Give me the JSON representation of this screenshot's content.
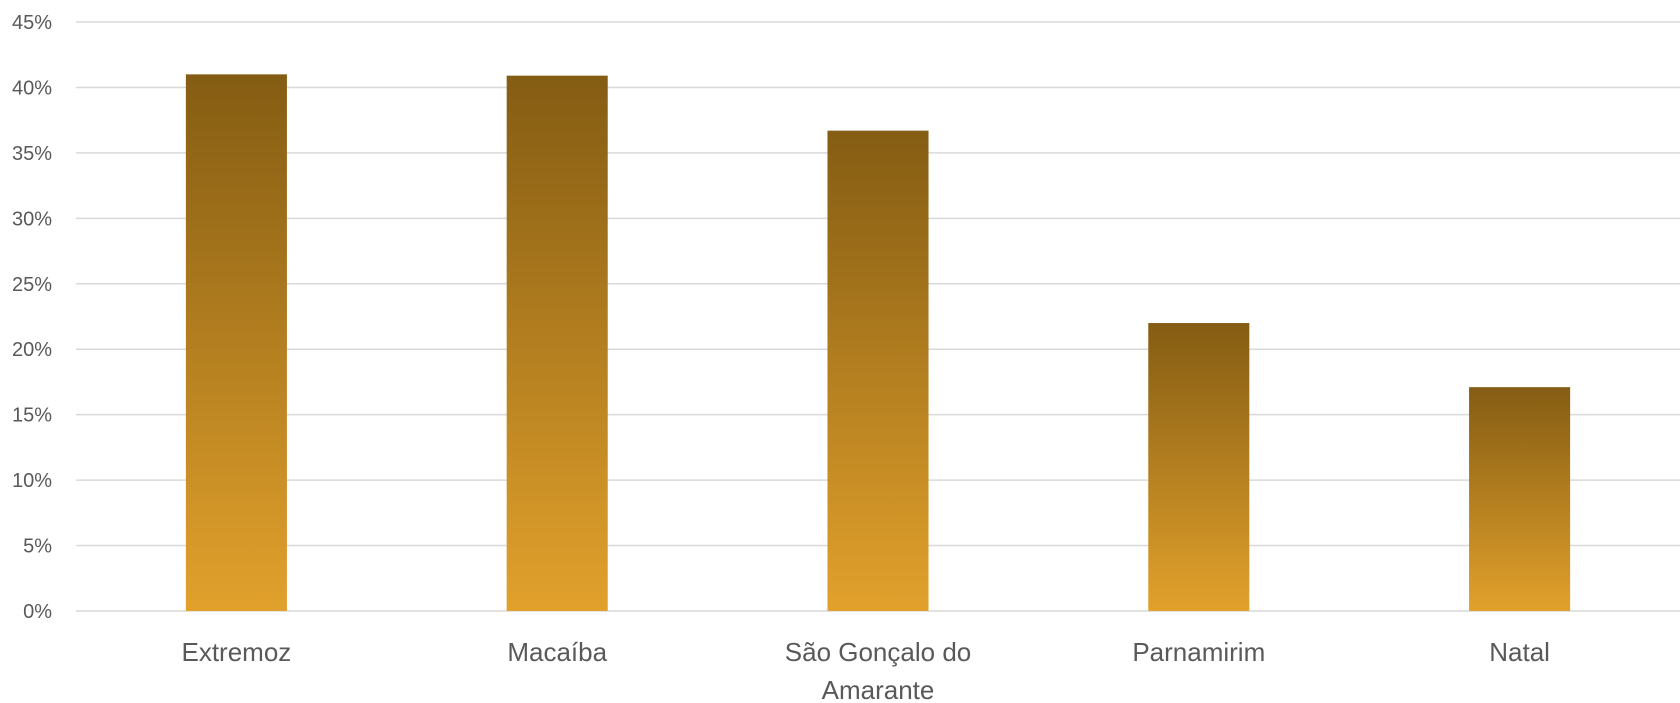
{
  "chart_data": {
    "type": "bar",
    "categories": [
      "Extremoz",
      "Macaíba",
      "São Gonçalo do Amarante",
      "Parnamirim",
      "Natal"
    ],
    "category_label_lines": [
      [
        "Extremoz"
      ],
      [
        "Macaíba"
      ],
      [
        "São Gonçalo do",
        "Amarante"
      ],
      [
        "Parnamirim"
      ],
      [
        "Natal"
      ]
    ],
    "values": [
      0.41,
      0.409,
      0.367,
      0.22,
      0.171
    ],
    "ylim": [
      0,
      0.45
    ],
    "yticks": [
      0,
      0.05,
      0.1,
      0.15,
      0.2,
      0.25,
      0.3,
      0.35,
      0.4,
      0.45
    ],
    "ytick_labels": [
      "0%",
      "5%",
      "10%",
      "15%",
      "20%",
      "25%",
      "30%",
      "35%",
      "40%",
      "45%"
    ],
    "grid": true,
    "legend": "none",
    "colors": {
      "bar_top": "#845c13",
      "bar_bottom": "#e2a12c",
      "grid": "#d9d9d9",
      "text": "#595959"
    }
  }
}
